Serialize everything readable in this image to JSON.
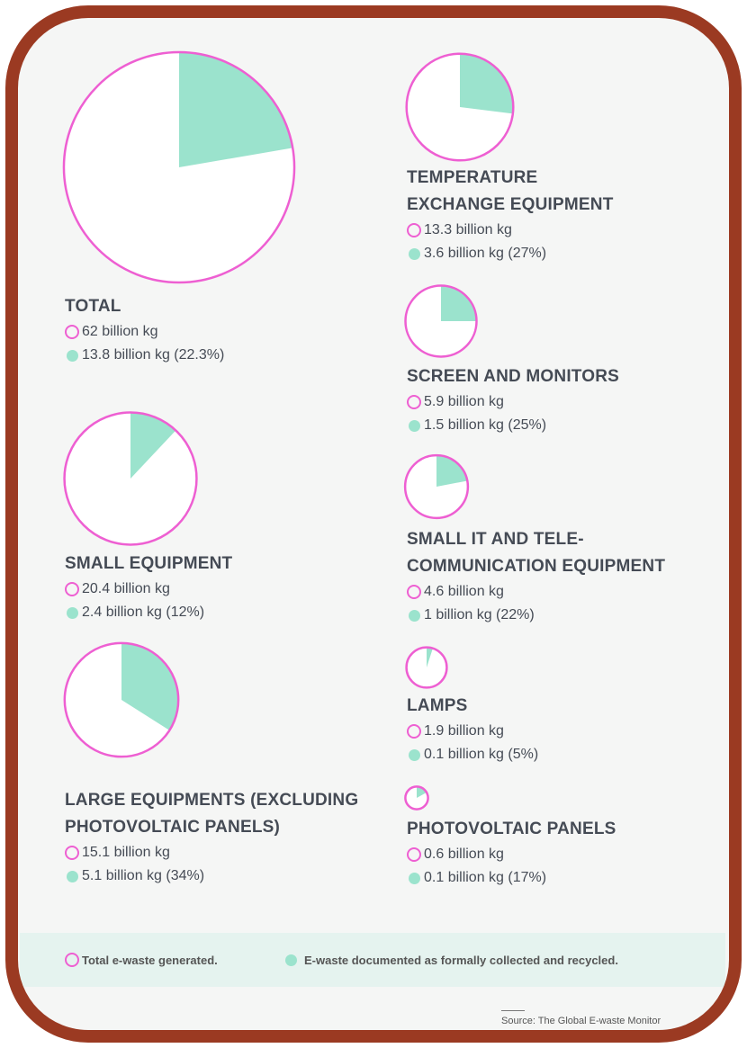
{
  "chart_data": {
    "type": "pie",
    "categories": [
      "TOTAL",
      "TEMPERATURE EXCHANGE EQUIPMENT",
      "SCREEN AND MONITORS",
      "SMALL IT AND TELE-COMMUNICATION EQUIPMENT",
      "LAMPS",
      "PHOTOVOLTAIC PANELS",
      "SMALL EQUIPMENT",
      "LARGE EQUIPMENTS (EXCLUDING PHOTOVOLTAIC PANELS)"
    ],
    "series": [
      {
        "name": "Total e-waste generated.",
        "color": "#ee5fd2",
        "values": [
          62,
          13.3,
          5.9,
          4.6,
          1.9,
          0.6,
          20.4,
          15.1
        ],
        "value_labels": [
          "62 billion kg",
          "13.3 billion kg",
          "5.9 billion kg",
          "4.6 billion kg",
          "1.9 billion kg",
          "0.6 billion kg",
          "20.4 billion kg",
          "15.1 billion kg"
        ]
      },
      {
        "name": "E-waste documented as formally collected and recycled.",
        "color": "#9be3cd",
        "values": [
          13.8,
          3.6,
          1.5,
          1,
          0.1,
          0.1,
          2.4,
          5.1
        ],
        "percent": [
          22.3,
          27,
          25,
          22,
          5,
          17,
          12,
          34
        ],
        "value_labels": [
          "13.8 billion kg (22.3%)",
          "3.6 billion kg (27%)",
          "1.5 billion kg (25%)",
          "1 billion kg (22%)",
          "0.1 billion kg (5%)",
          "0.1 billion kg (17%)",
          "2.4 billion kg (12%)",
          "5.1 billion kg (34%)"
        ]
      }
    ],
    "source": "Source: The Global E-waste Monitor"
  }
}
